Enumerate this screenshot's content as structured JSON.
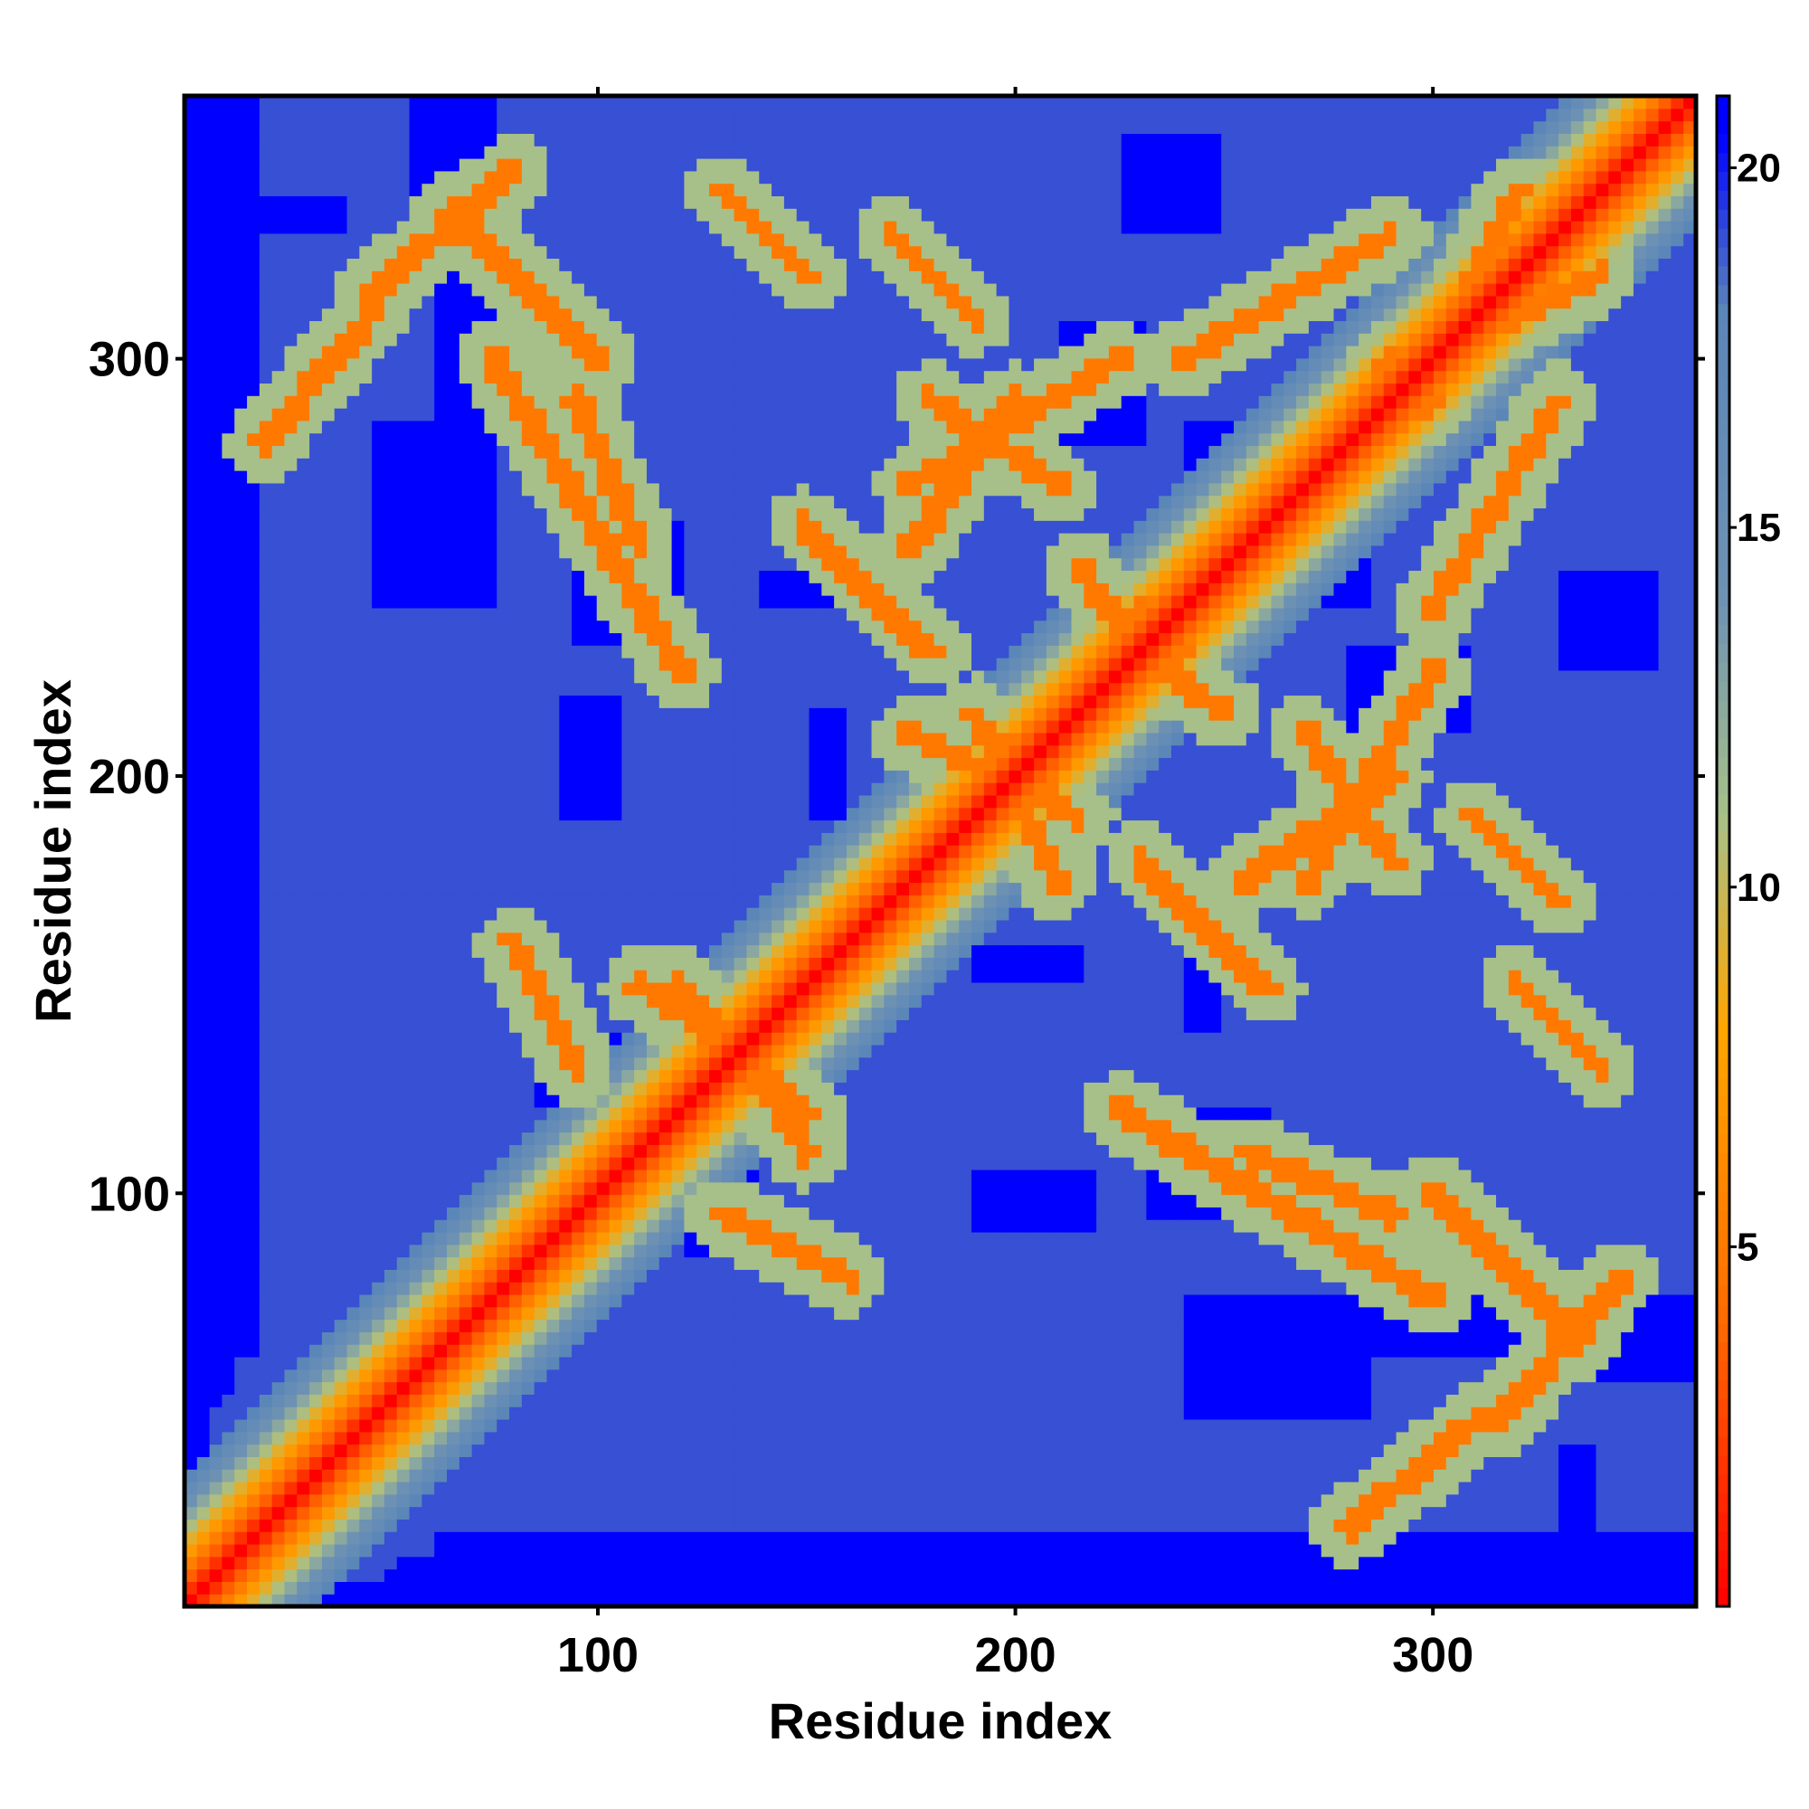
{
  "chart_data": {
    "type": "heatmap",
    "title": "",
    "xlabel": "Residue index",
    "ylabel": "Residue index",
    "xlim": [
      1,
      363
    ],
    "ylim": [
      1,
      363
    ],
    "x_ticks": [
      100,
      200,
      300
    ],
    "y_ticks": [
      100,
      200,
      300
    ],
    "colorbar": {
      "ticks": [
        5,
        10,
        15,
        20
      ],
      "range": [
        0,
        21
      ],
      "stops": [
        {
          "value": 0,
          "color": "#ff0000"
        },
        {
          "value": 4,
          "color": "#ff6a00"
        },
        {
          "value": 8,
          "color": "#ffa500"
        },
        {
          "value": 11,
          "color": "#a7c089"
        },
        {
          "value": 14,
          "color": "#6f92b3"
        },
        {
          "value": 18,
          "color": "#5b86b8"
        },
        {
          "value": 20.5,
          "color": "#0000ff"
        }
      ]
    },
    "description_free": true,
    "matrix_symmetric": true,
    "diagonal_value": 0,
    "background_value": 19,
    "far_value": 21,
    "contact_lines": [
      [
        64,
        335,
        100,
        300
      ],
      [
        75,
        300,
        120,
        225
      ],
      [
        95,
        290,
        110,
        255
      ],
      [
        150,
        260,
        180,
        230
      ],
      [
        175,
        270,
        225,
        300
      ],
      [
        175,
        210,
        215,
        190
      ],
      [
        205,
        195,
        230,
        240
      ],
      [
        230,
        230,
        250,
        215
      ],
      [
        240,
        300,
        290,
        330
      ],
      [
        255,
        175,
        290,
        200
      ],
      [
        260,
        265,
        300,
        290
      ],
      [
        270,
        210,
        290,
        180
      ],
      [
        300,
        300,
        340,
        320
      ],
      [
        310,
        190,
        330,
        170
      ],
      [
        320,
        150,
        340,
        130
      ],
      [
        110,
        150,
        140,
        130
      ],
      [
        125,
        145,
        150,
        120
      ],
      [
        130,
        95,
        160,
        80
      ],
      [
        45,
        315,
        80,
        345
      ],
      [
        20,
        280,
        45,
        310
      ]
    ],
    "far_blobs": [
      [
        15,
        330,
        40,
        340
      ],
      [
        60,
        325,
        75,
        270
      ],
      [
        80,
        315,
        95,
        300
      ],
      [
        90,
        220,
        105,
        190
      ],
      [
        140,
        250,
        170,
        240
      ],
      [
        230,
        120,
        260,
        95
      ],
      [
        270,
        260,
        285,
        240
      ],
      [
        300,
        330,
        320,
        310
      ],
      [
        330,
        250,
        355,
        225
      ],
      [
        60,
        60,
        80,
        45
      ],
      [
        240,
        75,
        285,
        45
      ],
      [
        330,
        75,
        363,
        55
      ],
      [
        190,
        160,
        215,
        150
      ],
      [
        280,
        230,
        310,
        210
      ],
      [
        85,
        140,
        110,
        120
      ]
    ]
  }
}
